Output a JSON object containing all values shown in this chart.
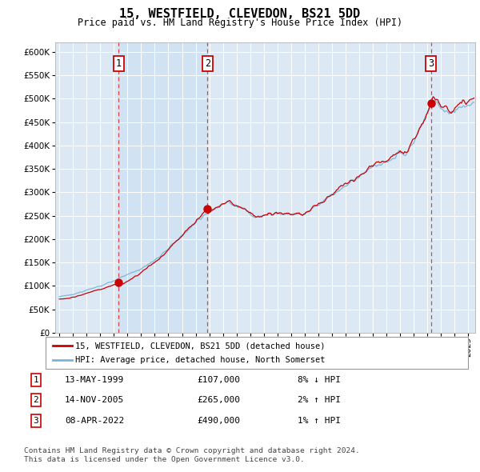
{
  "title": "15, WESTFIELD, CLEVEDON, BS21 5DD",
  "subtitle": "Price paid vs. HM Land Registry's House Price Index (HPI)",
  "background_color": "#ffffff",
  "plot_bg_color": "#dce9f5",
  "grid_color": "#ffffff",
  "hpi_color": "#7ab4d8",
  "price_color": "#cc0000",
  "dashed_line_color": "#dd3333",
  "shade_color": "#c8dff0",
  "transactions": [
    {
      "num": 1,
      "date_x": 1999.36,
      "price": 107000,
      "label": "13-MAY-1999",
      "price_str": "£107,000",
      "hpi_str": "8% ↓ HPI"
    },
    {
      "num": 2,
      "date_x": 2005.87,
      "price": 265000,
      "label": "14-NOV-2005",
      "price_str": "£265,000",
      "hpi_str": "2% ↑ HPI"
    },
    {
      "num": 3,
      "date_x": 2022.27,
      "price": 490000,
      "label": "08-APR-2022",
      "price_str": "£490,000",
      "hpi_str": "1% ↑ HPI"
    }
  ],
  "legend_entries": [
    {
      "label": "15, WESTFIELD, CLEVEDON, BS21 5DD (detached house)",
      "color": "#cc0000"
    },
    {
      "label": "HPI: Average price, detached house, North Somerset",
      "color": "#7ab4d8"
    }
  ],
  "footer_lines": [
    "Contains HM Land Registry data © Crown copyright and database right 2024.",
    "This data is licensed under the Open Government Licence v3.0."
  ],
  "ylim": [
    0,
    620000
  ],
  "yticks": [
    0,
    50000,
    100000,
    150000,
    200000,
    250000,
    300000,
    350000,
    400000,
    450000,
    500000,
    550000,
    600000
  ],
  "xlim_start": 1994.7,
  "xlim_end": 2025.5,
  "xticks": [
    1995,
    1996,
    1997,
    1998,
    1999,
    2000,
    2001,
    2002,
    2003,
    2004,
    2005,
    2006,
    2007,
    2008,
    2009,
    2010,
    2011,
    2012,
    2013,
    2014,
    2015,
    2016,
    2017,
    2018,
    2019,
    2020,
    2021,
    2022,
    2023,
    2024,
    2025
  ]
}
